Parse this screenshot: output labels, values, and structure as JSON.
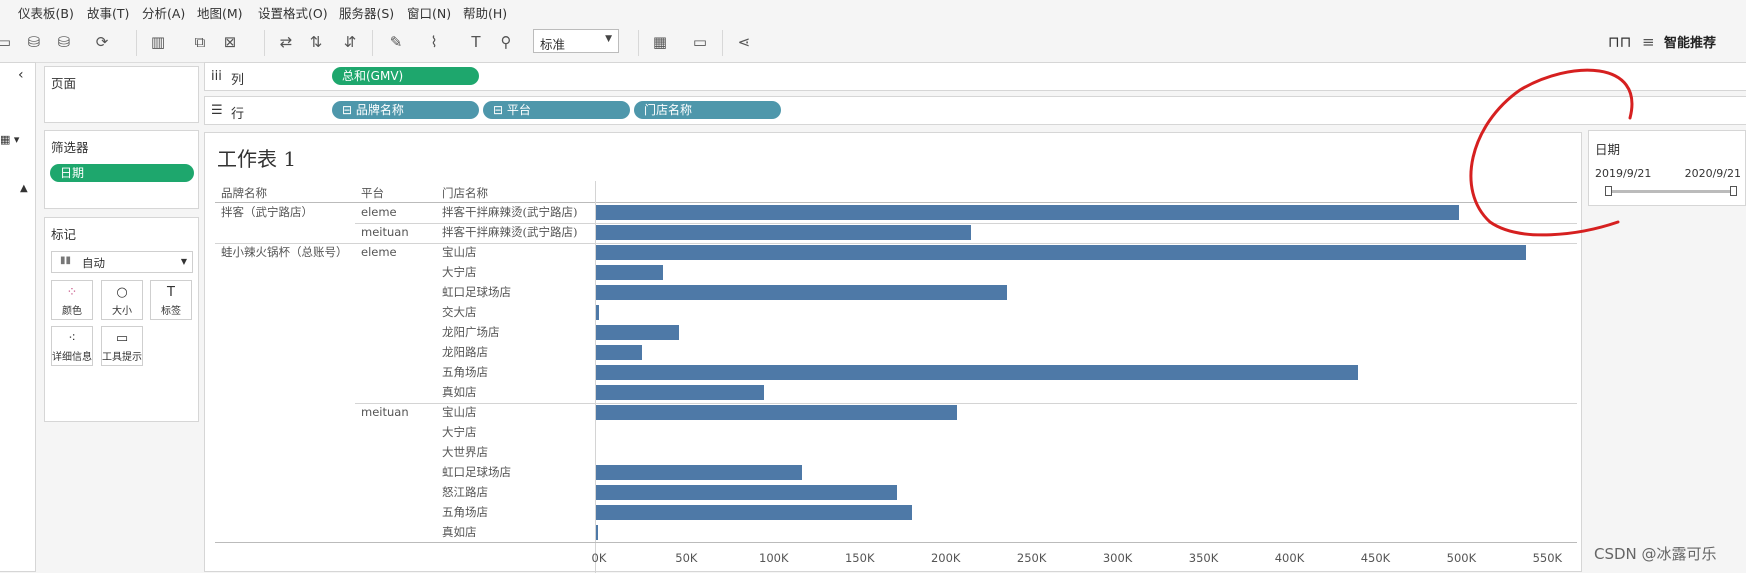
{
  "menu": [
    "仪表板(B)",
    "故事(T)",
    "分析(A)",
    "地图(M)",
    "设置格式(O)",
    "服务器(S)",
    "窗口(N)",
    "帮助(H)"
  ],
  "toolbar": {
    "fit_select": "标准",
    "smart_recommend": "智能推荐",
    "icons": [
      "new-datasource-icon",
      "save-icon",
      "refresh-icon",
      "new-worksheet-icon",
      "duplicate-icon",
      "clear-icon",
      "swap-icon",
      "sort-asc-icon",
      "sort-desc-icon",
      "highlight-icon",
      "group-icon",
      "text-label-icon",
      "pin-icon",
      "chart-type-icon",
      "presentation-icon",
      "share-icon",
      "binoculars-icon"
    ]
  },
  "pages_panel": {
    "title": "页面"
  },
  "filters_panel": {
    "title": "筛选器",
    "pill": "日期"
  },
  "marks_panel": {
    "title": "标记",
    "type": "自动",
    "cards": [
      "颜色",
      "大小",
      "标签",
      "详细信息",
      "工具提示"
    ]
  },
  "shelves": {
    "columns_label": "列",
    "rows_label": "行",
    "column_pills": [
      "总和(GMV)"
    ],
    "row_pills": [
      "品牌名称",
      "平台",
      "门店名称"
    ]
  },
  "sheet": {
    "title": "工作表 1",
    "headers": [
      "品牌名称",
      "平台",
      "门店名称"
    ]
  },
  "date_filter": {
    "title": "日期",
    "start": "2019/9/21",
    "end": "2020/9/21",
    "range_fraction": [
      0,
      1
    ]
  },
  "watermark": "CSDN @冰露可乐",
  "colors": {
    "bar": "#4e79a7",
    "green_pill": "#1ea76d",
    "blue_pill": "#4e97ab",
    "annotation": "#d62020"
  },
  "chart_data": {
    "type": "bar",
    "orientation": "horizontal",
    "xlim": [
      0,
      570000
    ],
    "x_ticks": [
      "0K",
      "50K",
      "100K",
      "150K",
      "200K",
      "250K",
      "300K",
      "350K",
      "400K",
      "450K",
      "500K",
      "550K"
    ],
    "rows": [
      {
        "brand": "拌客（武宁路店）",
        "platform": "eleme",
        "store": "拌客干拌麻辣烫(武宁路店)",
        "value": 502000
      },
      {
        "brand": "",
        "platform": "meituan",
        "store": "拌客干拌麻辣烫(武宁路店)",
        "value": 218000
      },
      {
        "brand": "蛙小辣火锅杯（总账号）",
        "platform": "eleme",
        "store": "宝山店",
        "value": 541000
      },
      {
        "brand": "",
        "platform": "",
        "store": "大宁店",
        "value": 39000
      },
      {
        "brand": "",
        "platform": "",
        "store": "虹口足球场店",
        "value": 239000
      },
      {
        "brand": "",
        "platform": "",
        "store": "交大店",
        "value": 1500
      },
      {
        "brand": "",
        "platform": "",
        "store": "龙阳广场店",
        "value": 48000
      },
      {
        "brand": "",
        "platform": "",
        "store": "龙阳路店",
        "value": 27000
      },
      {
        "brand": "",
        "platform": "",
        "store": "五角场店",
        "value": 443000
      },
      {
        "brand": "",
        "platform": "",
        "store": "真如店",
        "value": 98000
      },
      {
        "brand": "",
        "platform": "meituan",
        "store": "宝山店",
        "value": 210000
      },
      {
        "brand": "",
        "platform": "",
        "store": "大宁店",
        "value": 0
      },
      {
        "brand": "",
        "platform": "",
        "store": "大世界店",
        "value": 0
      },
      {
        "brand": "",
        "platform": "",
        "store": "虹口足球场店",
        "value": 120000
      },
      {
        "brand": "",
        "platform": "",
        "store": "怒江路店",
        "value": 175000
      },
      {
        "brand": "",
        "platform": "",
        "store": "五角场店",
        "value": 184000
      },
      {
        "brand": "",
        "platform": "",
        "store": "真如店",
        "value": 800
      }
    ]
  }
}
